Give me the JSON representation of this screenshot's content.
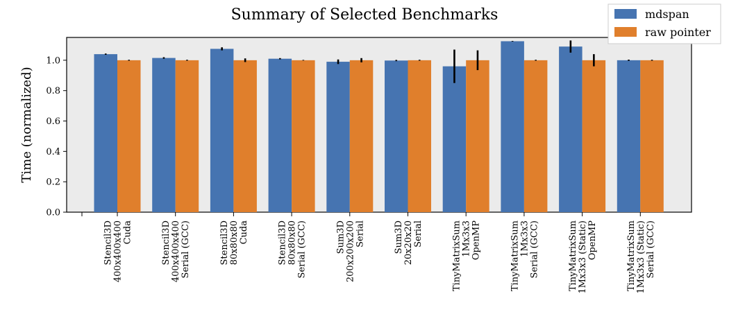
{
  "chart_data": {
    "type": "bar",
    "title": "Summary of Selected Benchmarks",
    "xlabel": "",
    "ylabel": "Time (normalized)",
    "ylim": [
      0,
      1.15
    ],
    "yticks": [
      "0.0",
      "0.2",
      "0.4",
      "0.6",
      "0.8",
      "1.0"
    ],
    "ytick_values": [
      0.0,
      0.2,
      0.4,
      0.6,
      0.8,
      1.0
    ],
    "grid": false,
    "legend_position": "top-right",
    "categories": [
      [
        "Stencil3D",
        "400x400x400",
        "Cuda"
      ],
      [
        "Stencil3D",
        "400x400x400",
        "Serial (GCC)"
      ],
      [
        "Stencil3D",
        "80x80x80",
        "Cuda"
      ],
      [
        "Stencil3D",
        "80x80x80",
        "Serial (GCC)"
      ],
      [
        "Sum3D",
        "200x200x200",
        "Serial"
      ],
      [
        "Sum3D",
        "20x20x20",
        "Serial"
      ],
      [
        "TinyMatrixSum",
        "1Mx3x3",
        "OpenMP"
      ],
      [
        "TinyMatrixSum",
        "1Mx3x3",
        "Serial (GCC)"
      ],
      [
        "TinyMatrixSum",
        "1Mx3x3 (Static)",
        "OpenMP"
      ],
      [
        "TinyMatrixSum",
        "1Mx3x3 (Static)",
        "Serial (GCC)"
      ]
    ],
    "series": [
      {
        "name": "mdspan",
        "color": "#4674b1",
        "values": [
          1.04,
          1.015,
          1.075,
          1.01,
          0.99,
          0.998,
          0.96,
          1.125,
          1.09,
          1.0
        ],
        "errors": [
          0.004,
          0.005,
          0.01,
          0.004,
          0.015,
          0.004,
          0.11,
          0.002,
          0.04,
          0.004
        ]
      },
      {
        "name": "raw pointer",
        "color": "#e07f2c",
        "values": [
          1.0,
          1.0,
          1.0,
          1.0,
          1.0,
          1.0,
          1.0,
          1.0,
          1.0,
          1.0
        ],
        "errors": [
          0.003,
          0.003,
          0.012,
          0.002,
          0.014,
          0.003,
          0.065,
          0.003,
          0.04,
          0.003
        ]
      }
    ],
    "background_color": "#ebebeb"
  }
}
